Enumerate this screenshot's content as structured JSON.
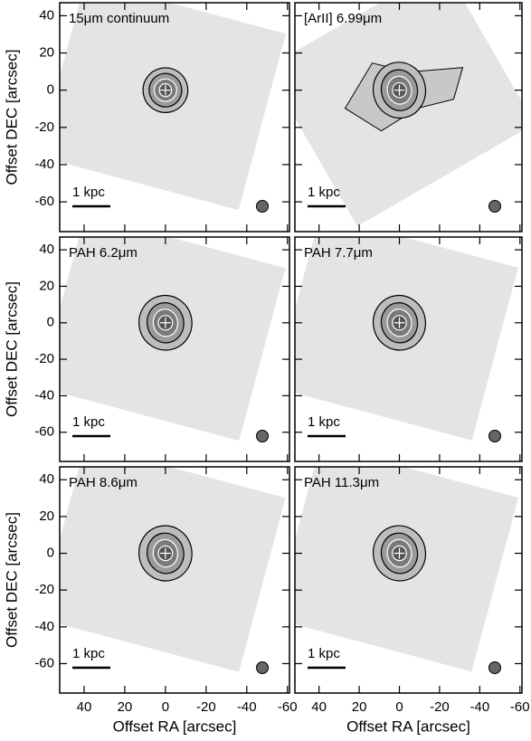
{
  "chart_data": [
    {
      "type": "image",
      "title": "15μm continuum",
      "scalebar": "1 kpc",
      "xlim": [
        52,
        -61
      ],
      "ylim": [
        -76,
        47
      ],
      "xticks": [
        40,
        20,
        0,
        -20,
        -40,
        -60
      ],
      "yticks": [
        40,
        20,
        0,
        -20,
        -40,
        -60
      ],
      "ylabel": "Offset DEC [arcsec]"
    },
    {
      "type": "image",
      "title": "[ArII] 6.99μm",
      "scalebar": "1 kpc",
      "xlim": [
        52,
        -61
      ],
      "ylim": [
        -76,
        47
      ],
      "xticks": [
        40,
        20,
        0,
        -20,
        -40,
        -60
      ],
      "yticks": [
        40,
        20,
        0,
        -20,
        -40,
        -60
      ]
    },
    {
      "type": "image",
      "title": "PAH 6.2μm",
      "scalebar": "1 kpc",
      "xlim": [
        52,
        -61
      ],
      "ylim": [
        -76,
        47
      ],
      "xticks": [
        40,
        20,
        0,
        -20,
        -40,
        -60
      ],
      "yticks": [
        40,
        20,
        0,
        -20,
        -40,
        -60
      ],
      "ylabel": "Offset DEC [arcsec]"
    },
    {
      "type": "image",
      "title": "PAH 7.7μm",
      "scalebar": "1 kpc",
      "xlim": [
        52,
        -61
      ],
      "ylim": [
        -76,
        47
      ],
      "xticks": [
        40,
        20,
        0,
        -20,
        -40,
        -60
      ],
      "yticks": [
        40,
        20,
        0,
        -20,
        -40,
        -60
      ]
    },
    {
      "type": "image",
      "title": "PAH 8.6μm",
      "scalebar": "1 kpc",
      "xlim": [
        52,
        -61
      ],
      "ylim": [
        -76,
        47
      ],
      "xticks": [
        40,
        20,
        0,
        -20,
        -40,
        -60
      ],
      "yticks": [
        40,
        20,
        0,
        -20,
        -40,
        -60
      ],
      "ylabel": "Offset DEC [arcsec]",
      "xlabel": "Offset RA [arcsec]"
    },
    {
      "type": "image",
      "title": "PAH 11.3μm",
      "scalebar": "1 kpc",
      "xlim": [
        52,
        -61
      ],
      "ylim": [
        -76,
        47
      ],
      "xticks": [
        40,
        20,
        0,
        -20,
        -40,
        -60
      ],
      "yticks": [
        40,
        20,
        0,
        -20,
        -40,
        -60
      ],
      "xlabel": "Offset RA [arcsec]"
    }
  ]
}
